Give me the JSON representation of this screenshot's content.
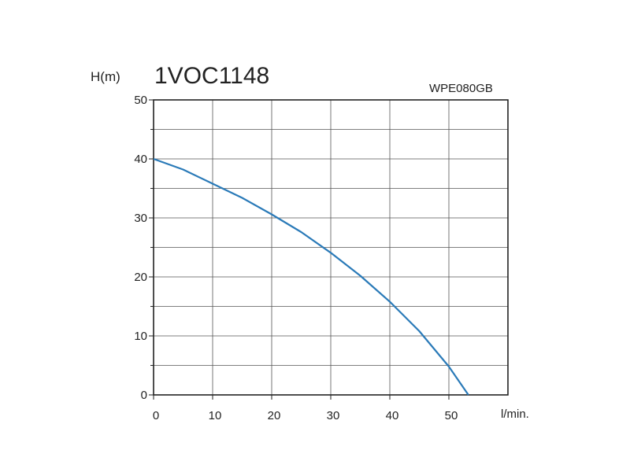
{
  "chart_data": {
    "type": "line",
    "title": "1VOC1148",
    "model": "WPE080GB",
    "xlabel": "l/min.",
    "ylabel": "H(m)",
    "xlim": [
      0,
      60
    ],
    "ylim": [
      0,
      50
    ],
    "x_ticks": [
      0,
      10,
      20,
      30,
      40,
      50
    ],
    "y_ticks": [
      0,
      10,
      20,
      30,
      40,
      50
    ],
    "grid": true,
    "series": [
      {
        "color": "#2a7ab8",
        "x": [
          0,
          5,
          10,
          15,
          20,
          25,
          30,
          35,
          40,
          45,
          50,
          53.3
        ],
        "y": [
          40,
          38.2,
          35.8,
          33.4,
          30.6,
          27.6,
          24.1,
          20.2,
          15.8,
          10.8,
          4.8,
          0
        ]
      }
    ]
  }
}
